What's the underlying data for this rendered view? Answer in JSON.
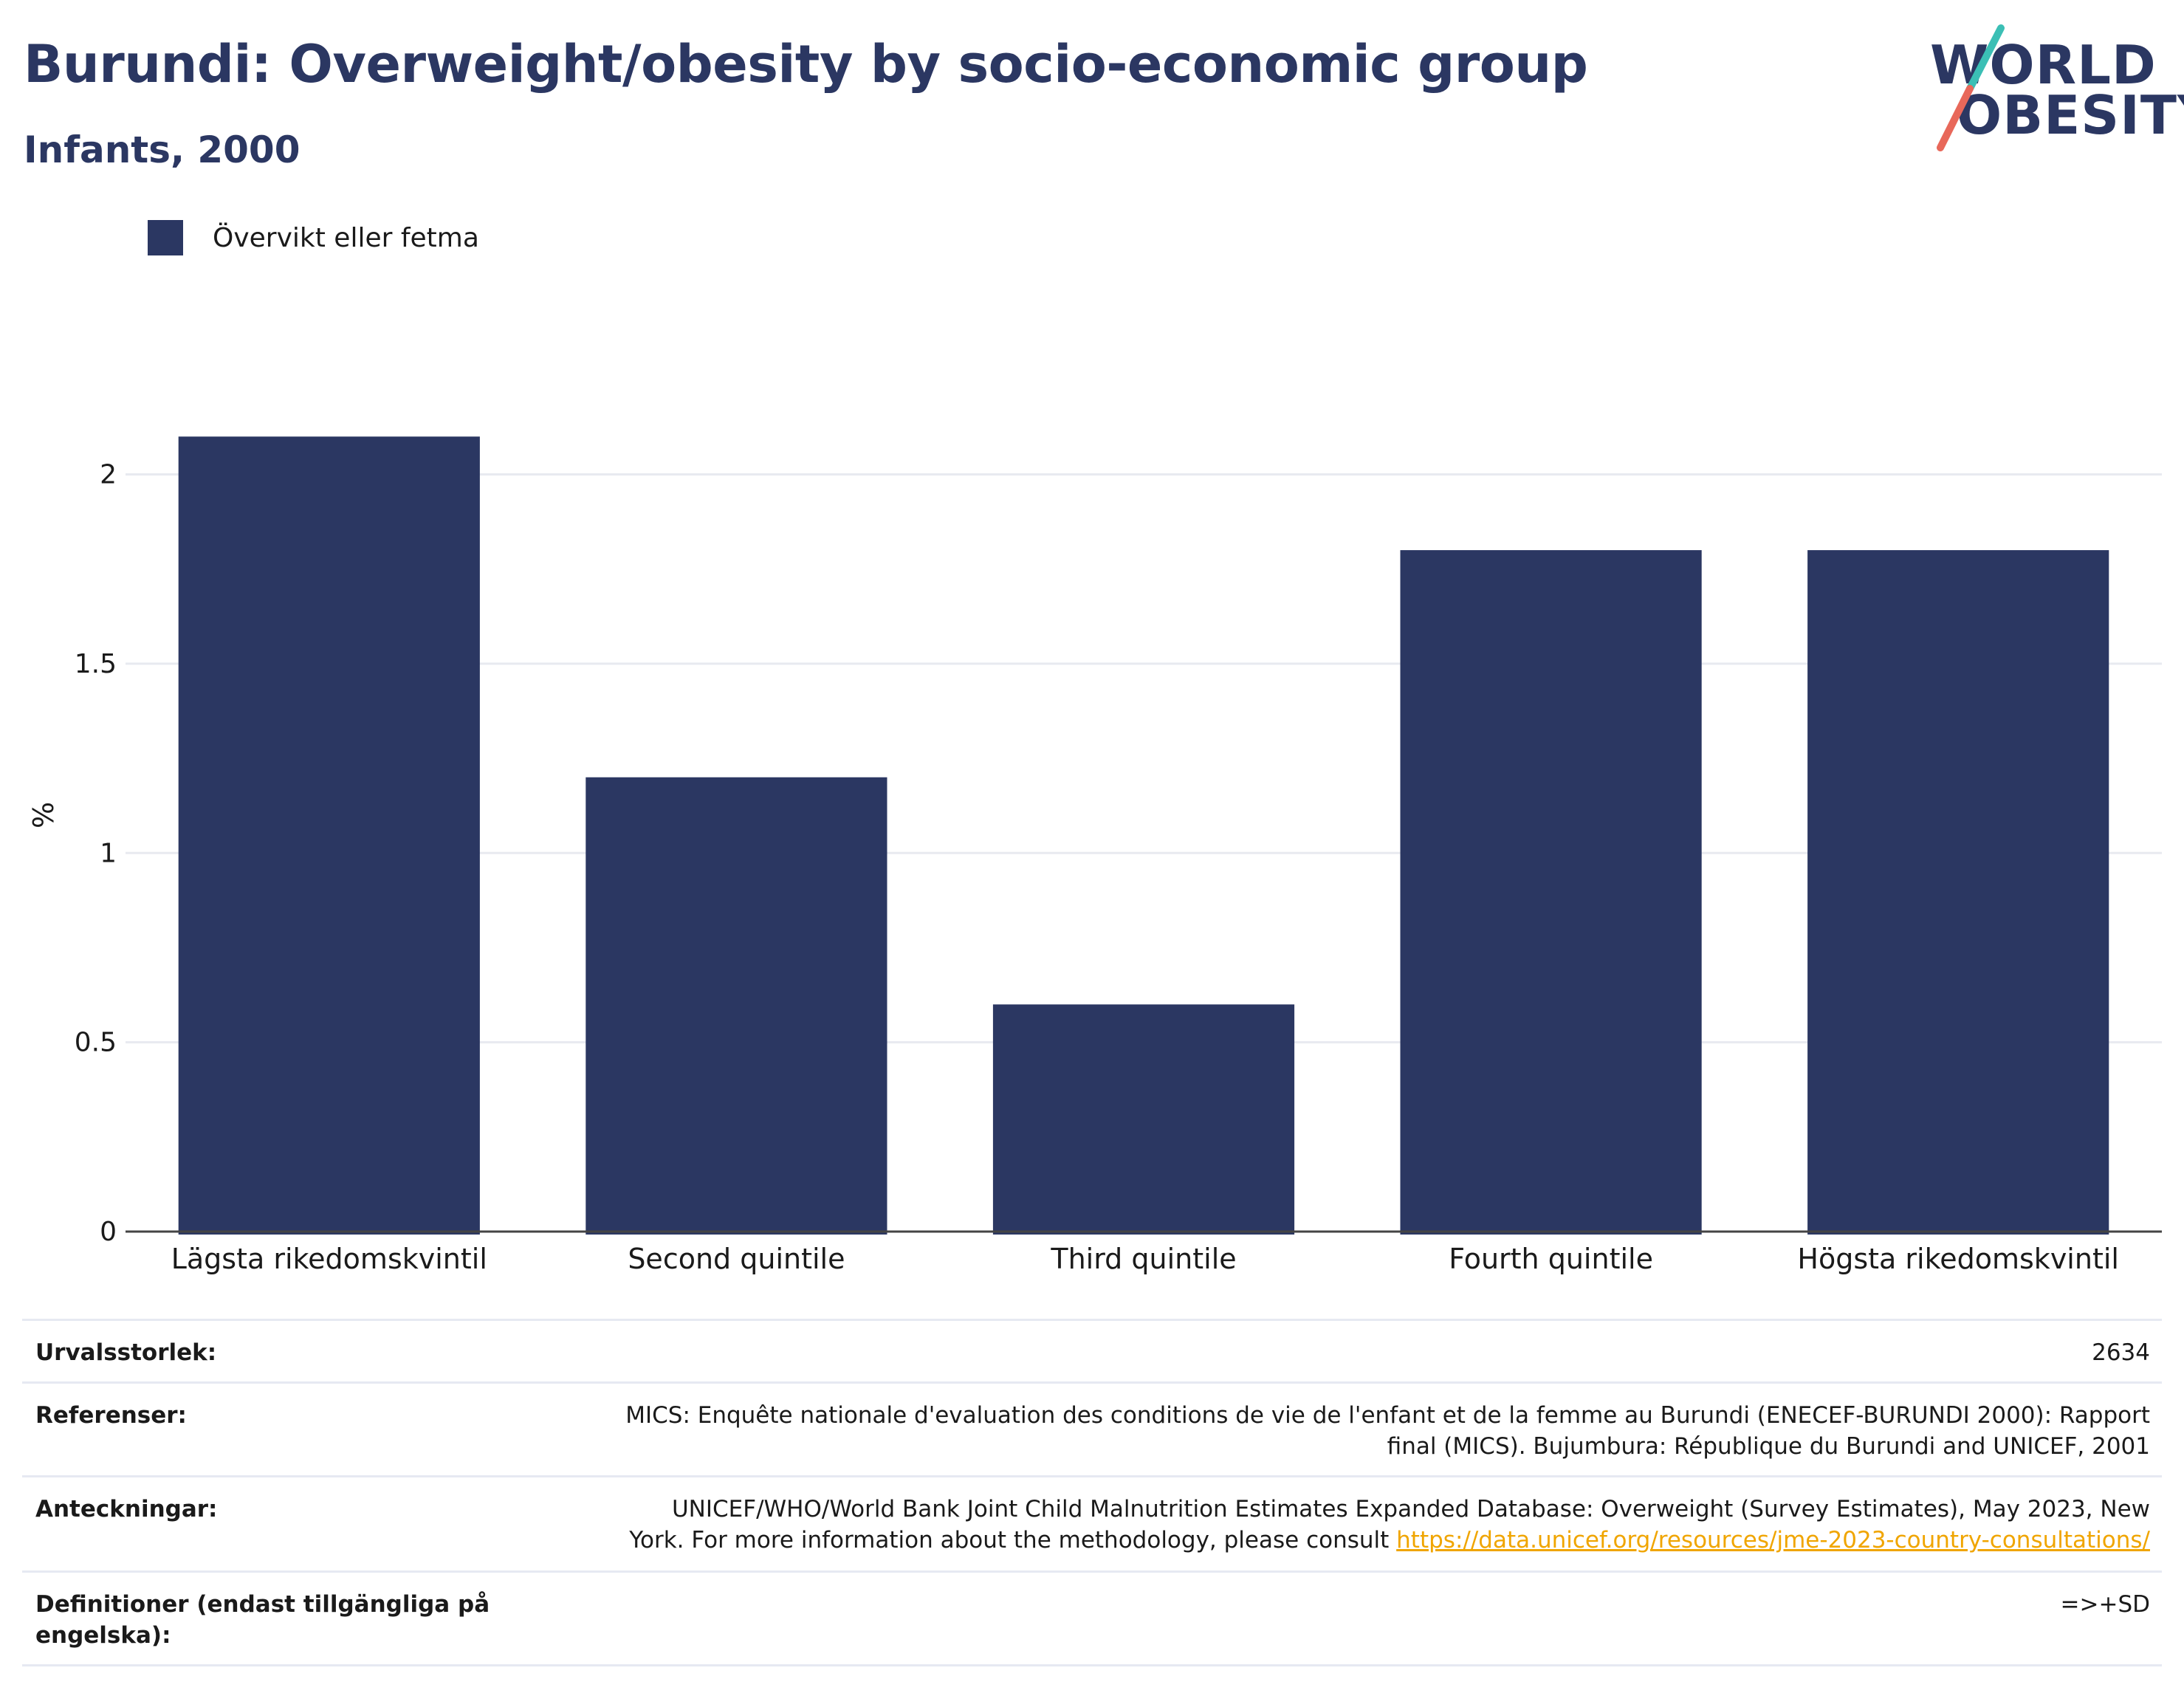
{
  "header": {
    "title": "Burundi: Overweight/obesity by socio-economic group",
    "subtitle": "Infants, 2000"
  },
  "logo": {
    "line1": "WORLD",
    "line2": "OBESITY",
    "colors": {
      "text": "#2b3762",
      "slash_top": "#3bbfb5",
      "slash_bottom": "#e8685a"
    }
  },
  "chart_data": {
    "type": "bar",
    "categories": [
      "Lägsta rikedomskvintil",
      "Second quintile",
      "Third quintile",
      "Fourth quintile",
      "Högsta rikedomskvintil"
    ],
    "series": [
      {
        "name": "Övervikt eller fetma",
        "values": [
          2.1,
          1.2,
          0.6,
          1.8,
          1.8
        ],
        "color": "#2b3762"
      }
    ],
    "ylabel": "%",
    "xlabel": "",
    "ylim": [
      0,
      2.2
    ],
    "yticks": [
      0,
      0.5,
      1,
      1.5,
      2
    ],
    "ytick_labels": [
      "0",
      "0.5",
      "1",
      "1.5",
      "2"
    ],
    "grid": true,
    "legend_position": "top-left"
  },
  "info": {
    "sample_size": {
      "label": "Urvalsstorlek:",
      "value": "2634"
    },
    "references": {
      "label": "Referenser:",
      "line1": "MICS: Enquête nationale d'evaluation des conditions de vie de l'enfant et de la femme au Burundi (ENECEF-BURUNDI 2000): Rapport",
      "line2": "final (MICS). Bujumbura: République du Burundi and UNICEF, 2001"
    },
    "notes": {
      "label": "Anteckningar:",
      "line1": "UNICEF/WHO/World Bank Joint Child Malnutrition Estimates Expanded Database: Overweight (Survey Estimates), May 2023, New",
      "line2": "York. For more information about the methodology, please consult ",
      "link": "https://data.unicef.org/resources/jme-2023-country-consultations/"
    },
    "definitions": {
      "label_line1": "Definitioner (endast tillgängliga på",
      "label_line2": "engelska):",
      "value": "=>+SD"
    }
  }
}
